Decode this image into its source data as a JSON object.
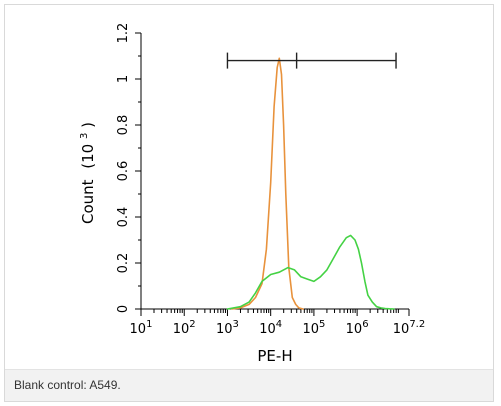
{
  "caption": "Blank control: A549.",
  "chart_data": {
    "type": "line",
    "title": "",
    "xlabel": "PE-H",
    "ylabel_main": "Count",
    "ylabel_base": "(10",
    "ylabel_exp": "3",
    "ylabel_close": ")",
    "xscale": "log",
    "xlim": [
      1,
      7.2
    ],
    "ylim": [
      0,
      1.2
    ],
    "grid": false,
    "yticks": [
      {
        "value": 0,
        "label": "0"
      },
      {
        "value": 0.2,
        "label": "0.2"
      },
      {
        "value": 0.4,
        "label": "0.4"
      },
      {
        "value": 0.6,
        "label": "0.6"
      },
      {
        "value": 0.8,
        "label": "0.8"
      },
      {
        "value": 1,
        "label": "1"
      },
      {
        "value": 1.2,
        "label": "1.2"
      }
    ],
    "xticks": [
      {
        "value": 1,
        "base": "10",
        "exp": "1"
      },
      {
        "value": 2,
        "base": "10",
        "exp": "2"
      },
      {
        "value": 3,
        "base": "10",
        "exp": "3"
      },
      {
        "value": 4,
        "base": "10",
        "exp": "4"
      },
      {
        "value": 5,
        "base": "10",
        "exp": "5"
      },
      {
        "value": 6,
        "base": "10",
        "exp": "6"
      },
      {
        "value": 7.2,
        "base": "10",
        "exp": "7.2"
      }
    ],
    "series": [
      {
        "color": "#e8923c",
        "x": [
          3.1,
          3.3,
          3.5,
          3.65,
          3.8,
          3.9,
          4.0,
          4.08,
          4.15,
          4.2,
          4.25,
          4.3,
          4.35,
          4.42,
          4.5,
          4.58,
          4.65,
          4.75
        ],
        "y": [
          0,
          0.005,
          0.02,
          0.05,
          0.11,
          0.26,
          0.55,
          0.88,
          1.05,
          1.09,
          1.02,
          0.8,
          0.5,
          0.18,
          0.05,
          0.02,
          0.005,
          0
        ]
      },
      {
        "color": "#44d244",
        "x": [
          3.0,
          3.3,
          3.5,
          3.65,
          3.8,
          4.0,
          4.2,
          4.4,
          4.55,
          4.7,
          4.85,
          5.0,
          5.15,
          5.3,
          5.45,
          5.6,
          5.75,
          5.85,
          5.95,
          6.03,
          6.1,
          6.18,
          6.25,
          6.35,
          6.45,
          6.55,
          6.65,
          6.75,
          6.85
        ],
        "y": [
          0,
          0.01,
          0.03,
          0.07,
          0.12,
          0.15,
          0.16,
          0.18,
          0.17,
          0.14,
          0.13,
          0.12,
          0.14,
          0.17,
          0.22,
          0.27,
          0.31,
          0.32,
          0.3,
          0.26,
          0.2,
          0.12,
          0.06,
          0.03,
          0.01,
          0.005,
          0.002,
          0.001,
          0
        ]
      }
    ],
    "gate": {
      "x_start": 3.0,
      "x_mid": 4.6,
      "x_end": 6.9,
      "y": 1.08
    }
  }
}
